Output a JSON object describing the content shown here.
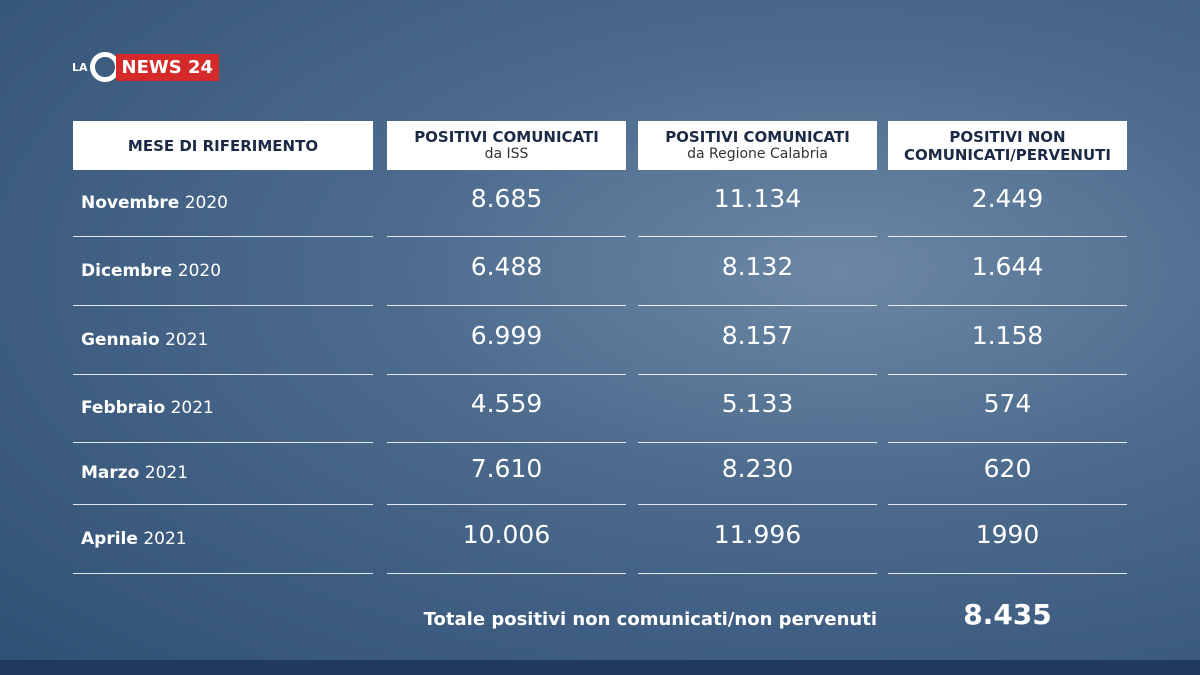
{
  "logo": {
    "prefix": "LA",
    "mark": "C",
    "name": "NEWS 24"
  },
  "table": {
    "headers": [
      {
        "title": "MESE DI RIFERIMENTO"
      },
      {
        "title": "POSITIVI COMUNICATI",
        "subtitle": "da ISS"
      },
      {
        "title": "POSITIVI COMUNICATI",
        "subtitle": "da Regione Calabria"
      },
      {
        "title": "POSITIVI NON COMUNICATI/PERVENUTI"
      }
    ],
    "rows": [
      {
        "month": "Novembre",
        "year": "2020",
        "cells": [
          "8.685",
          "11.134",
          "2.449"
        ]
      },
      {
        "month": "Dicembre",
        "year": "2020",
        "cells": [
          "6.488",
          "8.132",
          "1.644"
        ]
      },
      {
        "month": "Gennaio",
        "year": "2021",
        "cells": [
          "6.999",
          "8.157",
          "1.158"
        ]
      },
      {
        "month": "Febbraio",
        "year": "2021",
        "cells": [
          "4.559",
          "5.133",
          "574"
        ]
      },
      {
        "month": "Marzo",
        "year": "2021",
        "cells": [
          "7.610",
          "8.230",
          "620"
        ]
      },
      {
        "month": "Aprile",
        "year": "2021",
        "cells": [
          "10.006",
          "11.996",
          "1990"
        ]
      }
    ],
    "total": {
      "label": "Totale positivi non comunicati/non pervenuti",
      "value": "8.435"
    }
  }
}
